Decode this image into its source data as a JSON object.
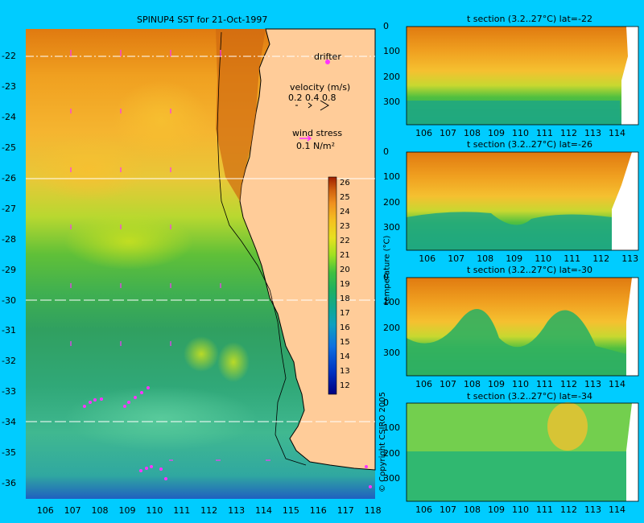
{
  "chart_data": [
    {
      "type": "heatmap",
      "title": "SPINUP4 SST for 21-Oct-1997",
      "x_ticks": [
        "106",
        "107",
        "108",
        "109",
        "110",
        "111",
        "112",
        "113",
        "114",
        "115",
        "116",
        "117",
        "118"
      ],
      "y_ticks": [
        "-22",
        "-23",
        "-24",
        "-25",
        "-26",
        "-27",
        "-28",
        "-29",
        "-30",
        "-31",
        "-32",
        "-33",
        "-34",
        "-35",
        "-36"
      ],
      "xlim": [
        105.3,
        118.1
      ],
      "ylim": [
        -36.5,
        -21.1
      ],
      "section_lines_lat": [
        -22,
        -26,
        -30,
        -34
      ],
      "colorbar": {
        "label": "temperature (°C)",
        "ticks": [
          "26",
          "25",
          "24",
          "23",
          "22",
          "21",
          "20",
          "19",
          "18",
          "17",
          "16",
          "15",
          "14",
          "13",
          "12"
        ],
        "range": [
          11.5,
          26.5
        ]
      },
      "legend": {
        "drifter": "drifter",
        "velocity_label": "velocity (m/s)",
        "velocity_scale": "0.2 0.4 0.8",
        "wind_label": "wind stress",
        "wind_scale": "0.1 N/m²"
      },
      "colors": {
        "ocean_warm": "#e07a10",
        "ocean_cool": "#33a860",
        "land": "#ffcc99",
        "arrows": "#ff33ff"
      }
    },
    {
      "type": "heatmap",
      "title": "t section (3.2..27°C) lat=-22",
      "x_ticks": [
        "106",
        "107",
        "108",
        "109",
        "110",
        "111",
        "112",
        "113",
        "114"
      ],
      "y_ticks": [
        "0",
        "100",
        "200",
        "300"
      ],
      "xlim": [
        105.3,
        114.9
      ],
      "ylim": [
        390,
        0
      ]
    },
    {
      "type": "heatmap",
      "title": "t section (3.2..27°C) lat=-26",
      "x_ticks": [
        "106",
        "107",
        "108",
        "109",
        "110",
        "111",
        "112",
        "113"
      ],
      "y_ticks": [
        "0",
        "100",
        "200",
        "300"
      ],
      "xlim": [
        105.3,
        113.3
      ],
      "ylim": [
        390,
        0
      ]
    },
    {
      "type": "heatmap",
      "title": "t section (3.2..27°C) lat=-30",
      "x_ticks": [
        "106",
        "107",
        "108",
        "109",
        "110",
        "111",
        "112",
        "113",
        "114"
      ],
      "y_ticks": [
        "0",
        "100",
        "200",
        "300"
      ],
      "xlim": [
        105.3,
        114.9
      ],
      "ylim": [
        390,
        0
      ]
    },
    {
      "type": "heatmap",
      "title": "t section (3.2..27°C) lat=-34",
      "x_ticks": [
        "106",
        "107",
        "108",
        "109",
        "110",
        "111",
        "112",
        "113",
        "114"
      ],
      "y_ticks": [
        "0",
        "100",
        "200",
        "300"
      ],
      "xlim": [
        105.3,
        114.9
      ],
      "ylim": [
        390,
        0
      ]
    }
  ],
  "copyright": "© Copyright CSIRO 2005"
}
